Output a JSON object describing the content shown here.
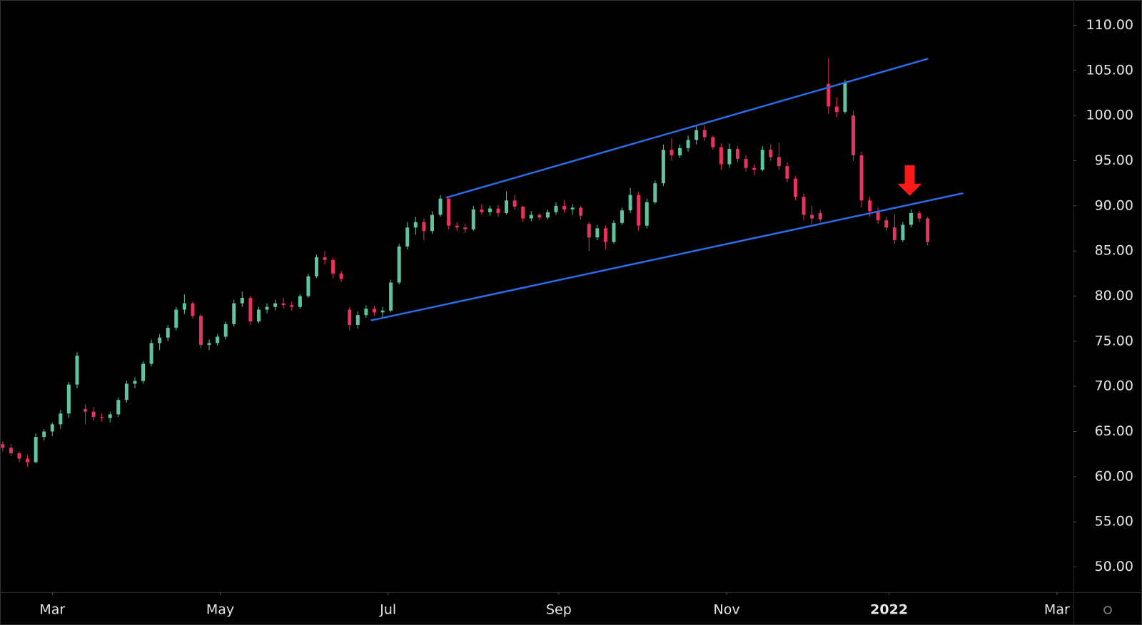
{
  "chart_data": {
    "type": "candlestick",
    "x": [
      -18,
      -15,
      -12,
      -9,
      -6,
      -3,
      0,
      3,
      6,
      9,
      12,
      15,
      18,
      21,
      24,
      27,
      30,
      33,
      36,
      39,
      42,
      45,
      48,
      51,
      54,
      57,
      60,
      63,
      66,
      69,
      72,
      75,
      78,
      81,
      84,
      87,
      90,
      93,
      96,
      99,
      102,
      105,
      108,
      111,
      114,
      117,
      120,
      123,
      126,
      129,
      132,
      135,
      138,
      141,
      144,
      147,
      150,
      153,
      156,
      159,
      162,
      165,
      168,
      171,
      174,
      177,
      180,
      183,
      186,
      189,
      192,
      195,
      198,
      201,
      204,
      207,
      210,
      213,
      216,
      219,
      222,
      225,
      228,
      231,
      234,
      237,
      240,
      243,
      246,
      249,
      252,
      255,
      258,
      261,
      264,
      267,
      270,
      273,
      276,
      279,
      282,
      285,
      288,
      291,
      294,
      297,
      300,
      303,
      306,
      309,
      312,
      315,
      318
    ],
    "open": [
      63.6,
      63.2,
      62.6,
      62.0,
      61.6,
      64.4,
      65.0,
      65.8,
      67.0,
      70.2,
      67.5,
      67.2,
      66.6,
      66.5,
      66.9,
      68.5,
      70.3,
      70.6,
      72.5,
      74.8,
      75.4,
      76.5,
      78.5,
      79.2,
      77.8,
      74.6,
      74.8,
      75.5,
      76.9,
      79.2,
      79.8,
      77.2,
      78.5,
      78.8,
      79.2,
      79.0,
      78.8,
      80.0,
      82.2,
      84.3,
      84.0,
      82.5,
      78.5,
      76.8,
      77.9,
      78.6,
      78.2,
      78.4,
      81.5,
      85.5,
      87.6,
      88.2,
      87.2,
      89.0,
      90.8,
      87.8,
      87.6,
      87.4,
      89.6,
      89.3,
      89.7,
      89.2,
      90.6,
      89.9,
      88.6,
      89.0,
      88.7,
      89.3,
      90.0,
      89.6,
      89.8,
      88.0,
      86.5,
      87.5,
      86.0,
      88.1,
      89.5,
      91.2,
      87.8,
      90.4,
      92.5,
      96.2,
      95.6,
      96.4,
      97.3,
      98.4,
      97.6,
      96.5,
      94.6,
      96.3,
      95.2,
      94.2,
      94.0,
      96.2,
      95.4,
      94.4,
      93.0,
      91.0,
      89.0,
      89.2,
      103.5,
      101.0,
      100.4,
      100.0,
      95.6,
      90.6,
      89.4,
      88.4,
      87.6,
      86.2,
      87.9,
      89.2,
      88.6
    ],
    "high": [
      63.9,
      63.6,
      62.8,
      62.4,
      64.8,
      65.3,
      66.0,
      67.4,
      70.5,
      73.8,
      68.0,
      67.7,
      67.0,
      67.2,
      68.8,
      70.6,
      71.0,
      72.8,
      75.2,
      75.8,
      76.8,
      78.8,
      80.2,
      79.4,
      78.0,
      75.2,
      75.8,
      77.2,
      79.6,
      80.5,
      80.0,
      78.8,
      79.2,
      79.6,
      79.8,
      79.4,
      80.2,
      82.5,
      84.6,
      85.0,
      84.2,
      82.8,
      78.8,
      78.3,
      79.0,
      78.9,
      78.8,
      81.8,
      85.8,
      88.2,
      88.8,
      88.6,
      89.4,
      91.2,
      91.0,
      88.2,
      88.0,
      90.0,
      90.2,
      90.0,
      90.1,
      91.6,
      91.2,
      90.0,
      89.4,
      89.2,
      89.6,
      90.4,
      90.6,
      90.2,
      90.0,
      88.2,
      87.9,
      87.8,
      88.4,
      89.8,
      92.0,
      91.5,
      90.8,
      92.8,
      96.8,
      97.5,
      96.8,
      97.8,
      98.9,
      99.0,
      97.8,
      96.9,
      96.9,
      96.6,
      95.6,
      94.6,
      96.6,
      96.8,
      97.0,
      94.8,
      93.3,
      91.4,
      90.0,
      89.6,
      106.4,
      102.0,
      104.0,
      100.5,
      96.0,
      91.0,
      89.8,
      88.8,
      89.0,
      88.2,
      89.6,
      89.4,
      88.8
    ],
    "low": [
      62.8,
      62.3,
      61.6,
      61.1,
      61.5,
      64.0,
      64.5,
      65.3,
      66.5,
      69.8,
      65.8,
      66.2,
      66.1,
      66.0,
      66.6,
      68.2,
      69.8,
      70.3,
      72.2,
      74.0,
      75.0,
      76.2,
      78.0,
      77.5,
      74.2,
      74.0,
      74.5,
      75.2,
      76.6,
      78.8,
      76.8,
      77.0,
      78.1,
      78.4,
      78.6,
      78.4,
      78.6,
      79.8,
      82.0,
      83.5,
      82.0,
      81.6,
      76.2,
      76.4,
      77.6,
      77.8,
      77.6,
      78.2,
      81.3,
      85.2,
      86.8,
      86.2,
      86.9,
      88.8,
      87.4,
      87.2,
      87.0,
      87.2,
      89.0,
      88.9,
      88.8,
      89.0,
      89.6,
      88.2,
      88.3,
      88.4,
      88.5,
      89.0,
      89.2,
      89.0,
      88.5,
      85.0,
      86.2,
      85.2,
      85.8,
      87.9,
      89.2,
      87.2,
      87.5,
      90.2,
      92.2,
      95.0,
      95.3,
      96.0,
      96.8,
      97.2,
      96.2,
      94.0,
      94.2,
      94.8,
      93.8,
      93.4,
      93.8,
      95.0,
      94.0,
      92.6,
      90.6,
      88.4,
      88.0,
      88.2,
      100.2,
      99.8,
      100.2,
      95.0,
      89.8,
      88.8,
      88.0,
      87.2,
      85.8,
      86.0,
      87.6,
      88.2,
      85.6
    ],
    "close": [
      63.2,
      62.6,
      62.0,
      61.6,
      64.4,
      65.0,
      65.8,
      67.0,
      70.2,
      73.4,
      67.2,
      66.6,
      66.5,
      66.9,
      68.5,
      70.3,
      70.6,
      72.5,
      74.8,
      75.4,
      76.5,
      78.5,
      79.2,
      77.8,
      74.6,
      74.8,
      75.5,
      76.9,
      79.2,
      79.8,
      77.2,
      78.5,
      78.8,
      79.2,
      79.0,
      78.8,
      80.0,
      82.2,
      84.3,
      84.0,
      82.5,
      81.9,
      76.8,
      77.9,
      78.6,
      78.2,
      78.4,
      81.5,
      85.5,
      87.6,
      88.2,
      87.2,
      89.0,
      90.8,
      87.8,
      87.6,
      87.4,
      89.6,
      89.3,
      89.7,
      89.2,
      90.6,
      89.9,
      88.6,
      89.0,
      88.7,
      89.3,
      90.0,
      89.6,
      89.8,
      88.9,
      86.5,
      87.5,
      86.0,
      88.1,
      89.5,
      91.2,
      87.8,
      90.4,
      92.5,
      96.2,
      95.6,
      96.4,
      97.3,
      98.4,
      97.6,
      96.5,
      94.6,
      96.3,
      95.2,
      94.2,
      94.0,
      96.2,
      95.4,
      94.4,
      93.0,
      91.0,
      89.0,
      88.6,
      88.5,
      101.0,
      100.4,
      103.6,
      95.6,
      90.6,
      89.4,
      88.4,
      87.6,
      86.2,
      87.9,
      89.2,
      88.6,
      86.0
    ],
    "up_color": "#5fc59d",
    "down_color": "#e8335c",
    "xlim": [
      -19,
      371
    ],
    "xticks": [
      {
        "value": 0,
        "label": "Mar"
      },
      {
        "value": 61,
        "label": "May"
      },
      {
        "value": 122,
        "label": "Jul"
      },
      {
        "value": 184,
        "label": "Sep"
      },
      {
        "value": 245,
        "label": "Nov"
      },
      {
        "value": 304,
        "label": "2022",
        "bold": true
      },
      {
        "value": 365,
        "label": "Mar"
      }
    ],
    "ylim": [
      47.2,
      112.8
    ],
    "yticks": [
      {
        "value": 50,
        "label": "50.00"
      },
      {
        "value": 55,
        "label": "55.00"
      },
      {
        "value": 60,
        "label": "60.00"
      },
      {
        "value": 65,
        "label": "65.00"
      },
      {
        "value": 70,
        "label": "70.00"
      },
      {
        "value": 75,
        "label": "75.00"
      },
      {
        "value": 80,
        "label": "80.00"
      },
      {
        "value": 85,
        "label": "85.00"
      },
      {
        "value": 90,
        "label": "90.00"
      },
      {
        "value": 95,
        "label": "95.00"
      },
      {
        "value": 100,
        "label": "100.00"
      },
      {
        "value": 105,
        "label": "105.00"
      },
      {
        "value": 110,
        "label": "110.00"
      }
    ],
    "lines": [
      {
        "x": [
          143,
          318.2
        ],
        "y": [
          90.9,
          106.3
        ]
      },
      {
        "x": [
          115.7,
          330.9
        ],
        "y": [
          77.3,
          91.4
        ]
      }
    ],
    "line_color": "#2e6be6",
    "arrow": {
      "x": 311.5,
      "y": 90.8
    },
    "arrow_color": "#ff1a1a"
  }
}
